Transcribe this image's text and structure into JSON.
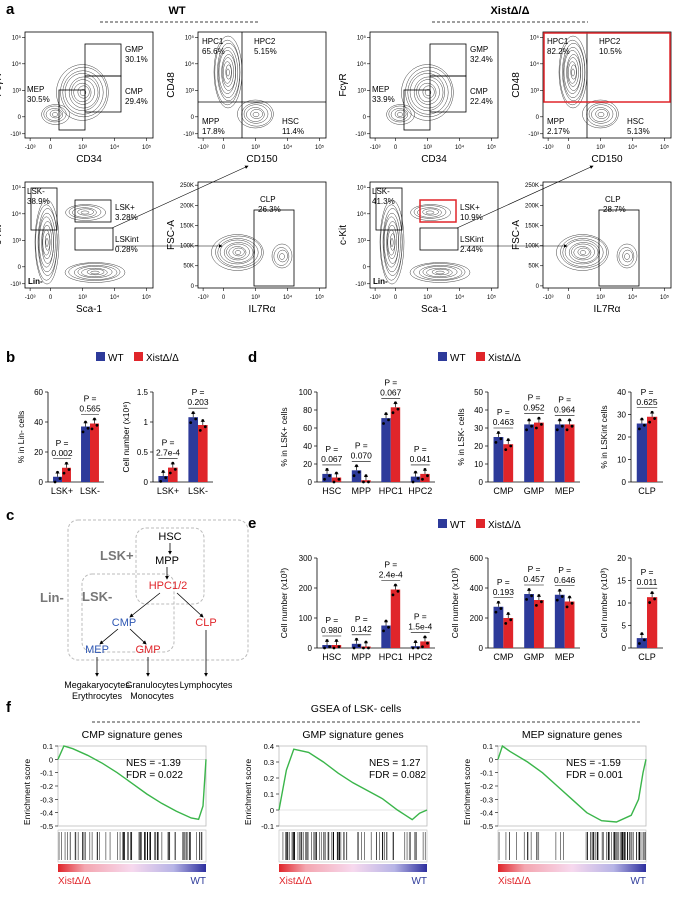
{
  "colors": {
    "wt": "#2d3a9a",
    "ko": "#e0252a",
    "red_outline": "#e0252a",
    "gsea_line": "#3ab54a",
    "text_blue": "#2d56b3",
    "text_red": "#e0252a"
  },
  "panel_labels": [
    "a",
    "b",
    "c",
    "d",
    "e",
    "f"
  ],
  "panel_a": {
    "wt_header": "WT",
    "ko_header": "XistΔ/Δ",
    "wt": {
      "myeloid": {
        "ylabel": "FcγR",
        "xlabel": "CD34",
        "gmp": "GMP",
        "gmp_val": "30.1%",
        "mep": "MEP",
        "mep_val": "30.5%",
        "cmp": "CMP",
        "cmp_val": "29.4%"
      },
      "hsc": {
        "ylabel": "CD48",
        "xlabel": "CD150",
        "hpc1": "HPC1",
        "hpc1_val": "65.6%",
        "hpc2": "HPC2",
        "hpc2_val": "5.15%",
        "mpp": "MPP",
        "mpp_val": "17.8%",
        "hsc": "HSC",
        "hsc_val": "11.4%"
      },
      "lsk": {
        "ylabel": "c-Kit",
        "xlabel": "Sca-1",
        "lsk_minus": "LSK-",
        "lsk_minus_val": "38.9%",
        "lsk_plus": "LSK+",
        "lsk_plus_val": "3.28%",
        "lsk_int": "LSKint",
        "lsk_int_val": "0.28%",
        "lin": "Lin-"
      },
      "clp": {
        "ylabel": "FSC-A",
        "xlabel": "IL7Rα",
        "clp": "CLP",
        "clp_val": "26.3%"
      }
    },
    "ko": {
      "myeloid": {
        "ylabel": "FcγR",
        "xlabel": "CD34",
        "gmp": "GMP",
        "gmp_val": "32.4%",
        "mep": "MEP",
        "mep_val": "33.9%",
        "cmp": "CMP",
        "cmp_val": "22.4%"
      },
      "hsc": {
        "ylabel": "CD48",
        "xlabel": "CD150",
        "hpc1": "HPC1",
        "hpc1_val": "82.2%",
        "hpc2": "HPC2",
        "hpc2_val": "10.5%",
        "mpp": "MPP",
        "mpp_val": "2.17%",
        "hsc": "HSC",
        "hsc_val": "5.13%"
      },
      "lsk": {
        "ylabel": "c-Kit",
        "xlabel": "Sca-1",
        "lsk_minus": "LSK-",
        "lsk_minus_val": "41.3%",
        "lsk_plus": "LSK+",
        "lsk_plus_val": "10.9%",
        "lsk_int": "LSKint",
        "lsk_int_val": "2.44%",
        "lin": "Lin-"
      },
      "clp": {
        "ylabel": "FSC-A",
        "xlabel": "IL7Rα",
        "clp": "CLP",
        "clp_val": "28.7%"
      }
    },
    "log_ticks": [
      "-10³",
      "0",
      "10³",
      "10⁴",
      "10⁵"
    ],
    "fsc_ticks": [
      "0",
      "50K",
      "100K",
      "150K",
      "200K",
      "250K"
    ]
  },
  "legend": {
    "wt": "WT",
    "ko": "XistΔ/Δ"
  },
  "chart_data": [
    {
      "id": "b1",
      "type": "bar",
      "categories": [
        "LSK+",
        "LSK-"
      ],
      "series": [
        {
          "name": "WT",
          "values": [
            3.5,
            37
          ]
        },
        {
          "name": "XistΔ/Δ",
          "values": [
            9.5,
            39
          ]
        }
      ],
      "ylabel": "% in Lin- cells",
      "ylim": [
        0,
        60
      ],
      "yticks": [
        0,
        20,
        40,
        60
      ],
      "pvalues": [
        "0.002",
        "0.565"
      ]
    },
    {
      "id": "b2",
      "type": "bar",
      "categories": [
        "LSK+",
        "LSK-"
      ],
      "series": [
        {
          "name": "WT",
          "values": [
            0.1,
            1.08
          ]
        },
        {
          "name": "XistΔ/Δ",
          "values": [
            0.24,
            0.95
          ]
        }
      ],
      "ylabel": "Cell number (x10⁶)",
      "ylim": [
        0,
        1.5
      ],
      "yticks": [
        0,
        0.5,
        1.0,
        1.5
      ],
      "pvalues": [
        "2.7e-4",
        "0.203"
      ]
    },
    {
      "id": "d1",
      "type": "bar",
      "categories": [
        "HSC",
        "MPP",
        "HPC1",
        "HPC2"
      ],
      "series": [
        {
          "name": "WT",
          "values": [
            9,
            13,
            71,
            6
          ]
        },
        {
          "name": "XistΔ/Δ",
          "values": [
            5,
            2,
            83,
            9
          ]
        }
      ],
      "ylabel": "% in LSK+ cells",
      "ylim": [
        0,
        100
      ],
      "yticks": [
        0,
        20,
        40,
        60,
        80,
        100
      ],
      "pvalues": [
        "0.067",
        "0.070",
        "0.067",
        "0.041"
      ]
    },
    {
      "id": "d2",
      "type": "bar",
      "categories": [
        "CMP",
        "GMP",
        "MEP"
      ],
      "series": [
        {
          "name": "WT",
          "values": [
            25,
            32,
            32
          ]
        },
        {
          "name": "XistΔ/Δ",
          "values": [
            21,
            33,
            32
          ]
        }
      ],
      "ylabel": "% in LSK- cells",
      "ylim": [
        0,
        50
      ],
      "yticks": [
        0,
        10,
        20,
        30,
        40,
        50
      ],
      "pvalues": [
        "0.463",
        "0.952",
        "0.964"
      ]
    },
    {
      "id": "d3",
      "type": "bar",
      "categories": [
        "CLP"
      ],
      "series": [
        {
          "name": "WT",
          "values": [
            26
          ]
        },
        {
          "name": "XistΔ/Δ",
          "values": [
            29
          ]
        }
      ],
      "ylabel": "% in LSKint cells",
      "ylim": [
        0,
        40
      ],
      "yticks": [
        0,
        10,
        20,
        30,
        40
      ],
      "pvalues": [
        "0.625"
      ]
    },
    {
      "id": "e1",
      "type": "bar",
      "categories": [
        "HSC",
        "MPP",
        "HPC1",
        "HPC2"
      ],
      "series": [
        {
          "name": "WT",
          "values": [
            10,
            14,
            75,
            6
          ]
        },
        {
          "name": "XistΔ/Δ",
          "values": [
            10,
            5,
            195,
            22
          ]
        }
      ],
      "ylabel": "Cell number (x10³)",
      "ylim": [
        0,
        300
      ],
      "yticks": [
        0,
        100,
        200,
        300
      ],
      "pvalues": [
        "0.980",
        "0.142",
        "2.4e-4",
        "1.5e-4"
      ]
    },
    {
      "id": "e2",
      "type": "bar",
      "categories": [
        "CMP",
        "GMP",
        "MEP"
      ],
      "series": [
        {
          "name": "WT",
          "values": [
            275,
            360,
            355
          ]
        },
        {
          "name": "XistΔ/Δ",
          "values": [
            200,
            320,
            310
          ]
        }
      ],
      "ylabel": "Cell number (x10³)",
      "ylim": [
        0,
        600
      ],
      "yticks": [
        0,
        200,
        400,
        600
      ],
      "pvalues": [
        "0.193",
        "0.457",
        "0.646"
      ]
    },
    {
      "id": "e3",
      "type": "bar",
      "categories": [
        "CLP"
      ],
      "series": [
        {
          "name": "WT",
          "values": [
            2.2
          ]
        },
        {
          "name": "XistΔ/Δ",
          "values": [
            11.3
          ]
        }
      ],
      "ylabel": "Cell number (x10³)",
      "ylim": [
        0,
        20
      ],
      "yticks": [
        0,
        5,
        10,
        15,
        20
      ],
      "pvalues": [
        "0.011"
      ]
    },
    {
      "id": "f1",
      "type": "line",
      "title": "CMP signature genes",
      "ylabel": "Enrichment score",
      "ylim": [
        -0.5,
        0.1
      ],
      "yticks": [
        0.1,
        0,
        -0.1,
        -0.2,
        -0.3,
        -0.4,
        -0.5
      ],
      "nes": "NES = -1.39",
      "fdr": "FDR = 0.022",
      "x": [
        0,
        0.04,
        0.1,
        0.2,
        0.3,
        0.4,
        0.5,
        0.6,
        0.7,
        0.8,
        0.9,
        0.95,
        0.98,
        1.0
      ],
      "y": [
        0.0,
        0.1,
        0.08,
        0.03,
        -0.03,
        -0.1,
        -0.18,
        -0.26,
        -0.33,
        -0.39,
        -0.44,
        -0.45,
        -0.35,
        0.0
      ]
    },
    {
      "id": "f2",
      "type": "line",
      "title": "GMP signature genes",
      "ylabel": "Enrichment score",
      "ylim": [
        -0.1,
        0.4
      ],
      "yticks": [
        0.4,
        0.3,
        0.2,
        0.1,
        0,
        -0.1
      ],
      "nes": "NES = 1.27",
      "fdr": "FDR = 0.082",
      "x": [
        0,
        0.05,
        0.1,
        0.2,
        0.3,
        0.4,
        0.5,
        0.6,
        0.7,
        0.8,
        0.85,
        0.9,
        0.95,
        1.0
      ],
      "y": [
        0.0,
        0.25,
        0.38,
        0.36,
        0.3,
        0.23,
        0.17,
        0.12,
        0.07,
        0.0,
        -0.03,
        -0.06,
        -0.02,
        0.0
      ]
    },
    {
      "id": "f3",
      "type": "line",
      "title": "MEP signature genes",
      "ylabel": "Enrichment score",
      "ylim": [
        -0.5,
        0.1
      ],
      "yticks": [
        0.1,
        0,
        -0.1,
        -0.2,
        -0.3,
        -0.4,
        -0.5
      ],
      "nes": "NES = -1.59",
      "fdr": "FDR = 0.001",
      "x": [
        0,
        0.03,
        0.08,
        0.2,
        0.3,
        0.4,
        0.5,
        0.6,
        0.7,
        0.8,
        0.9,
        0.95,
        0.98,
        1.0
      ],
      "y": [
        0.0,
        0.1,
        0.06,
        -0.02,
        -0.1,
        -0.2,
        -0.3,
        -0.4,
        -0.46,
        -0.47,
        -0.42,
        -0.3,
        -0.1,
        0.0
      ]
    }
  ],
  "hierarchy": {
    "hsc": "HSC",
    "mpp": "MPP",
    "hpc": "HPC1/2",
    "cmp": "CMP",
    "clp": "CLP",
    "mep": "MEP",
    "gmp": "GMP",
    "lsk_plus": "LSK+",
    "lsk_minus": "LSK-",
    "lin_minus": "Lin-",
    "out1a": "Megakaryocytes",
    "out1b": "Erythrocytes",
    "out2a": "Granulocytes",
    "out2b": "Monocytes",
    "out3": "Lymphocytes"
  },
  "panel_f": {
    "title": "GSEA of  LSK- cells",
    "left_label": "XistΔ/Δ",
    "right_label": "WT"
  },
  "p_prefix": "P ="
}
